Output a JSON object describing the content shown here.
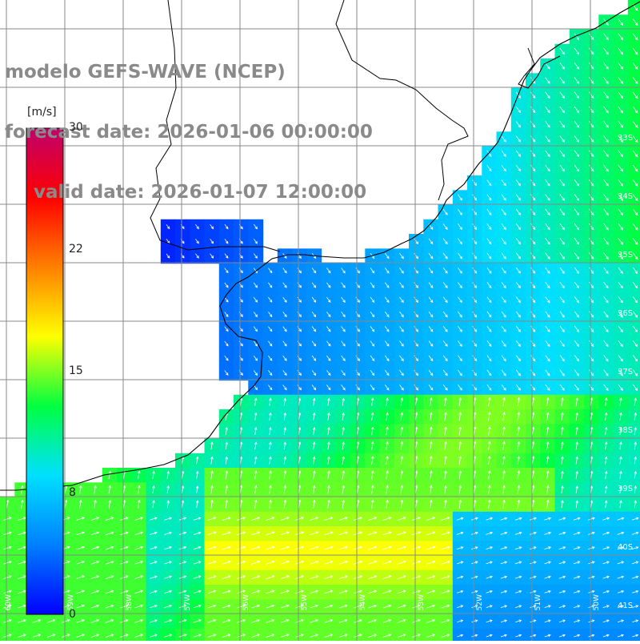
{
  "header": {
    "title_line1": "modelo GEFS-WAVE (NCEP)",
    "title_line2": "forecast date: 2026-01-06 00:00:00",
    "title_line3": "valid date: 2026-01-07 12:00:00"
  },
  "colorbar": {
    "unit": "[m/s]",
    "ticks": [
      "30",
      "22",
      "15",
      "8",
      "0"
    ],
    "colors": [
      "#0000ff",
      "#0080ff",
      "#00e0ff",
      "#00ff40",
      "#ffff00",
      "#ff8000",
      "#ff0000",
      "#c0006c"
    ]
  },
  "latitude_labels": [
    "33S",
    "34S",
    "35S",
    "36S",
    "37S",
    "38S",
    "39S",
    "40S",
    "41S"
  ],
  "longitude_labels": [
    "60W",
    "59W",
    "58W",
    "57W",
    "56W",
    "55W",
    "54W",
    "53W",
    "52W",
    "51W",
    "50W"
  ],
  "colors": {
    "land": "#ffffff",
    "coastline": "#000000",
    "grid": "#888888",
    "arrows": "#ffffff",
    "header_text": "#8a8a8a"
  },
  "chart_data": {
    "type": "heatmap",
    "field": "wind speed",
    "units": "m/s",
    "color_range": [
      0,
      30
    ],
    "overlay": "wind direction arrows"
  }
}
